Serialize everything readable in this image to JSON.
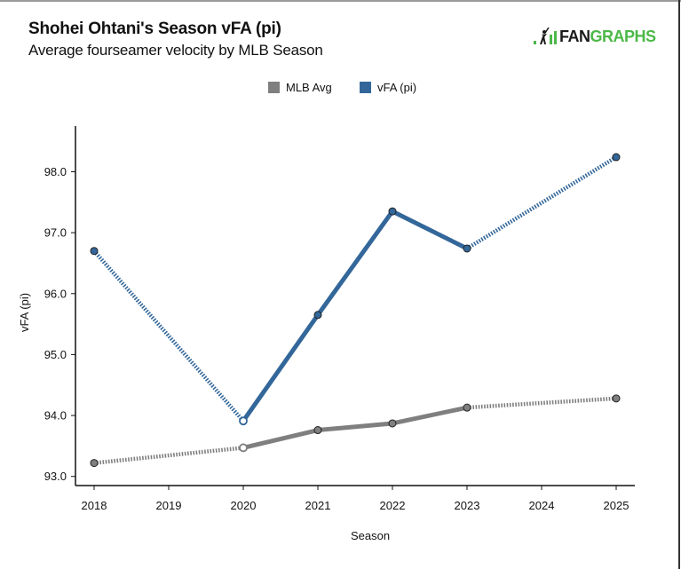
{
  "header": {
    "title": "Shohei Ohtani's Season vFA (pi)",
    "subtitle": "Average fourseamer velocity by MLB Season",
    "logo_part1": "FAN",
    "logo_part2": "GRAPHS",
    "logo_icon": "fangraphs-batter-icon"
  },
  "colors": {
    "mlb_avg": "#7f7f7f",
    "vfa": "#33679a",
    "logo_green": "#4cb848"
  },
  "chart_data": {
    "type": "line",
    "title": "Shohei Ohtani's Season vFA (pi)",
    "subtitle": "Average fourseamer velocity by MLB Season",
    "xlabel": "Season",
    "ylabel": "vFA (pi)",
    "xlim": [
      2017.75,
      2025.25
    ],
    "ylim": [
      92.85,
      98.75
    ],
    "x_ticks": [
      2018,
      2019,
      2020,
      2021,
      2022,
      2023,
      2024,
      2025
    ],
    "x_tick_labels": [
      "2018",
      "2019",
      "2020",
      "2021",
      "2022",
      "2023",
      "2024",
      "2025"
    ],
    "y_ticks": [
      93,
      94,
      95,
      96,
      97,
      98
    ],
    "y_tick_labels": [
      "93.0",
      "94.0",
      "95.0",
      "96.0",
      "97.0",
      "98.0"
    ],
    "grid": false,
    "legend": {
      "placement": "top-center",
      "entries": [
        "MLB Avg",
        "vFA (pi)"
      ]
    },
    "series": [
      {
        "name": "MLB Avg",
        "color": "#7f7f7f",
        "x": [
          2018,
          2020,
          2021,
          2022,
          2023,
          2025
        ],
        "values": [
          93.22,
          93.47,
          93.76,
          93.87,
          94.13,
          94.28
        ],
        "hollow_points": [
          2020
        ]
      },
      {
        "name": "vFA (pi)",
        "color": "#33679a",
        "x": [
          2018,
          2020,
          2021,
          2022,
          2023,
          2025
        ],
        "values": [
          96.7,
          93.91,
          95.65,
          97.35,
          96.74,
          98.24
        ],
        "hollow_points": [
          2020
        ]
      }
    ]
  }
}
